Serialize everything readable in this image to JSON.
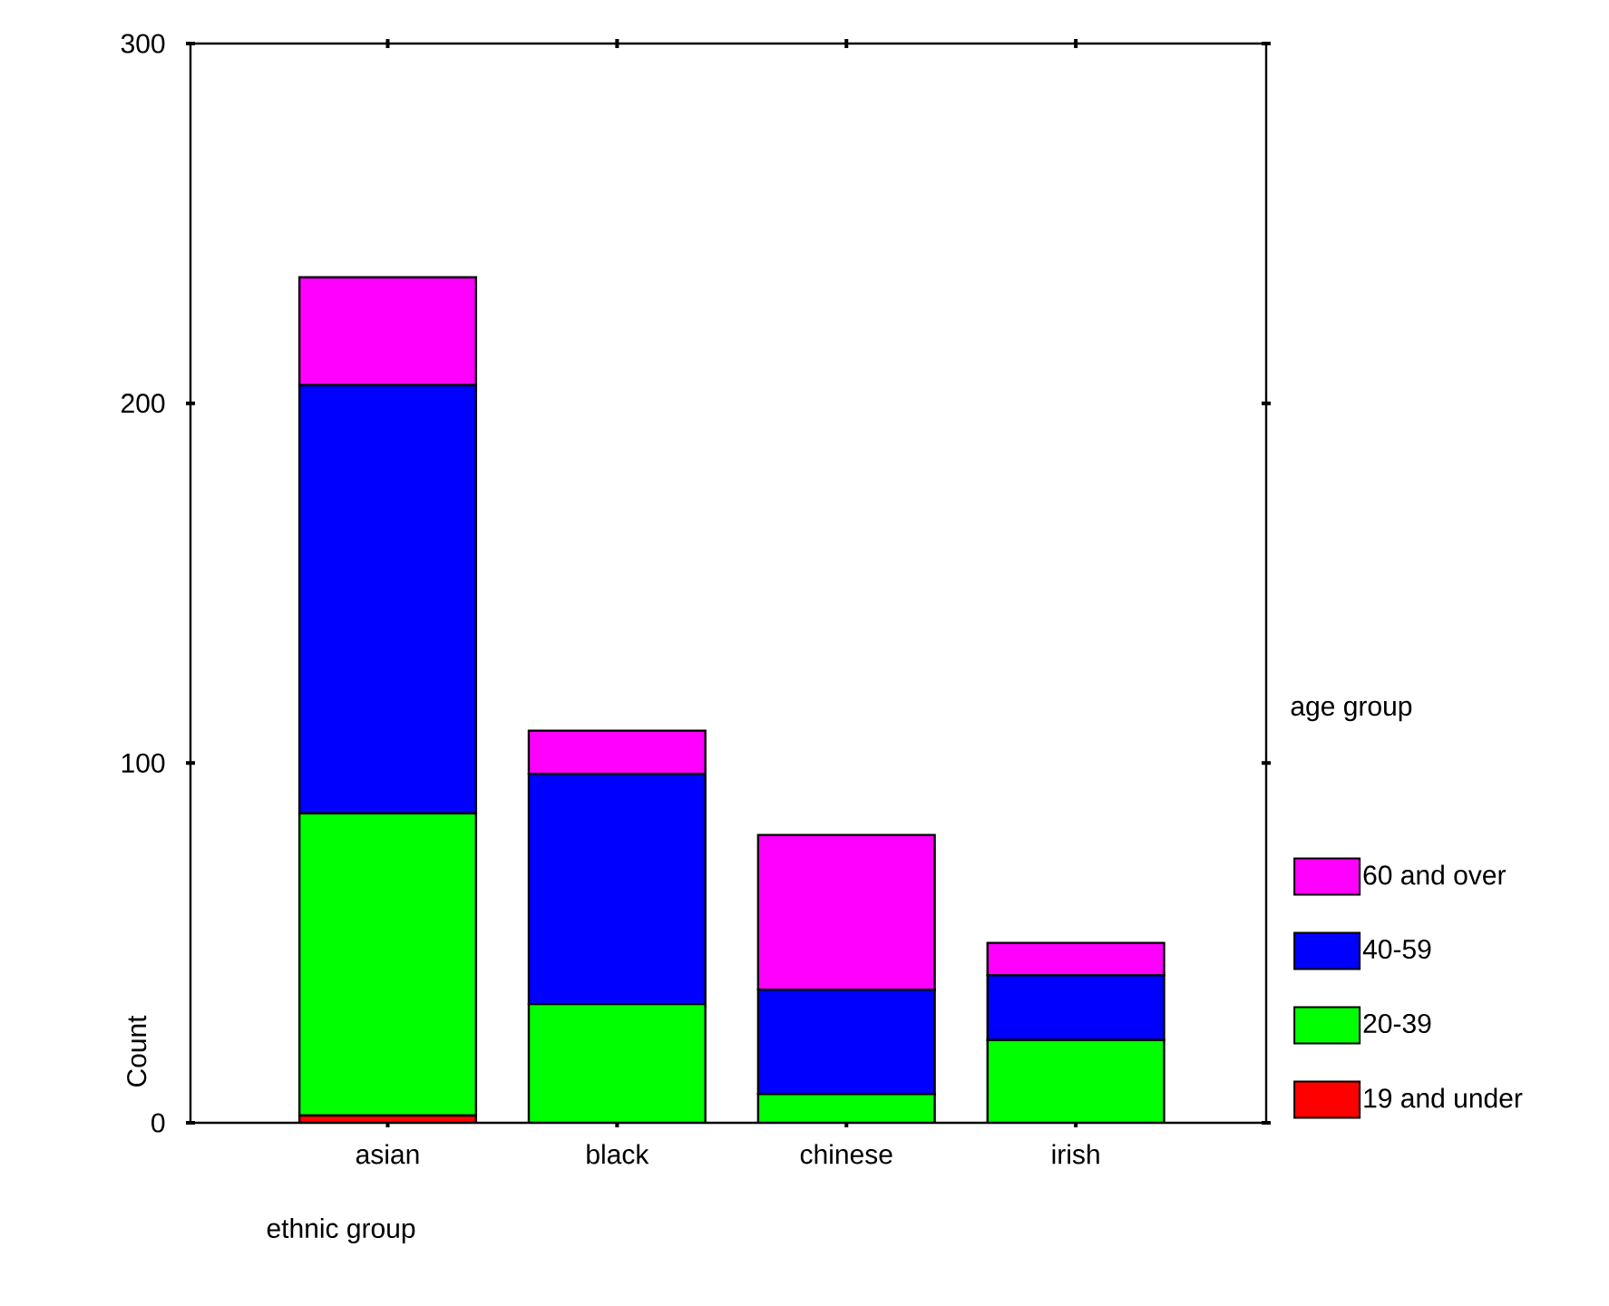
{
  "chart_data": {
    "type": "bar",
    "stacked": true,
    "xlabel": "ethnic group",
    "ylabel": "Count",
    "legend_title": "age group",
    "legend": "right",
    "grid": false,
    "categories": [
      "asian",
      "black",
      "chinese",
      "irish"
    ],
    "ylim": [
      0,
      300
    ],
    "yticks": [
      0,
      100,
      200,
      300
    ],
    "series": [
      {
        "name": "19 and under",
        "color": "#ff0000",
        "values": [
          2,
          0,
          0,
          0
        ]
      },
      {
        "name": "20-39",
        "color": "#00ff00",
        "values": [
          84,
          33,
          8,
          23
        ]
      },
      {
        "name": "40-59",
        "color": "#0000ff",
        "values": [
          119,
          64,
          29,
          18
        ]
      },
      {
        "name": "60 and over",
        "color": "#ff00ff",
        "values": [
          30,
          12,
          43,
          9
        ]
      }
    ]
  }
}
